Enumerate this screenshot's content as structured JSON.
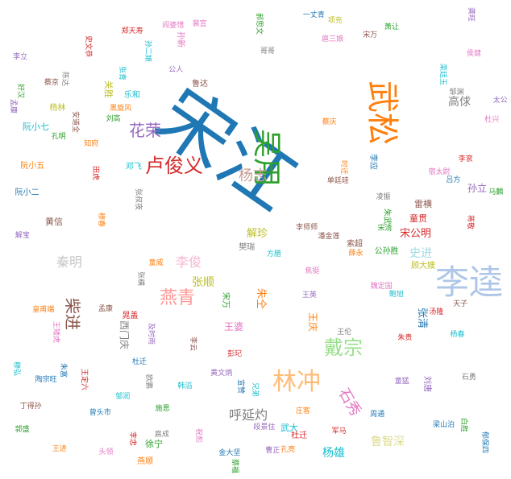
{
  "words": [
    {
      "text": "宋江",
      "color": "#1f77b4",
      "weight": 1.0
    },
    {
      "text": "李逵",
      "color": "#aec7e8",
      "weight": 0.5
    },
    {
      "text": "武松",
      "color": "#ff7f0e",
      "weight": 0.45
    },
    {
      "text": "吴用",
      "color": "#2ca02c",
      "weight": 0.42
    },
    {
      "text": "林冲",
      "color": "#ffbb78",
      "weight": 0.36
    },
    {
      "text": "卢俊义",
      "color": "#d62728",
      "weight": 0.3
    },
    {
      "text": "戴宗",
      "color": "#98df8a",
      "weight": 0.3
    },
    {
      "text": "燕青",
      "color": "#ff9896",
      "weight": 0.28
    },
    {
      "text": "花荣",
      "color": "#9467bd",
      "weight": 0.26
    },
    {
      "text": "柴进",
      "color": "#8c564b",
      "weight": 0.24
    },
    {
      "text": "杨志",
      "color": "#c49c94",
      "weight": 0.24
    },
    {
      "text": "石秀",
      "color": "#e377c2",
      "weight": 0.23
    },
    {
      "text": "高俅",
      "color": "#7f7f7f",
      "weight": 0.22
    },
    {
      "text": "秦明",
      "color": "#c7c7c7",
      "weight": 0.21
    },
    {
      "text": "李俊",
      "color": "#f7b6d2",
      "weight": 0.21
    },
    {
      "text": "张顺",
      "color": "#bcbd22",
      "weight": 0.2
    },
    {
      "text": "呼延灼",
      "color": "#7f7f7f",
      "weight": 0.2
    },
    {
      "text": "杨雄",
      "color": "#17becf",
      "weight": 0.19
    },
    {
      "text": "鲁智深",
      "color": "#dbdb8d",
      "weight": 0.19
    },
    {
      "text": "史进",
      "color": "#9edae5",
      "weight": 0.18
    },
    {
      "text": "宋公明",
      "color": "#d62728",
      "weight": 0.18
    },
    {
      "text": "解珍",
      "color": "#bcbd22",
      "weight": 0.17
    },
    {
      "text": "朱仝",
      "color": "#ff7f0e",
      "weight": 0.17
    },
    {
      "text": "孙立",
      "color": "#9467bd",
      "weight": 0.16
    },
    {
      "text": "王庆",
      "color": "#ff7f0e",
      "weight": 0.16
    },
    {
      "text": "王婆",
      "color": "#e377c2",
      "weight": 0.16
    },
    {
      "text": "张清",
      "color": "#1f77b4",
      "weight": 0.16
    },
    {
      "text": "西门庆",
      "color": "#7f7f7f",
      "weight": 0.15
    },
    {
      "text": "关胜",
      "color": "#bcbd22",
      "weight": 0.15
    },
    {
      "text": "阮小七",
      "color": "#17becf",
      "weight": 0.15
    },
    {
      "text": "雷横",
      "color": "#8c564b",
      "weight": 0.15
    },
    {
      "text": "童贯",
      "color": "#d62728",
      "weight": 0.14
    },
    {
      "text": "黄信",
      "color": "#8c564b",
      "weight": 0.14
    },
    {
      "text": "徐宁",
      "color": "#2ca02c",
      "weight": 0.14
    },
    {
      "text": "武大",
      "color": "#17becf",
      "weight": 0.14
    },
    {
      "text": "鲁达",
      "color": "#8c564b",
      "weight": 0.13
    },
    {
      "text": "顾大嫂",
      "color": "#bcbd22",
      "weight": 0.13
    },
    {
      "text": "朱武",
      "color": "#2ca02c",
      "weight": 0.13
    },
    {
      "text": "李应",
      "color": "#1f77b4",
      "weight": 0.13
    },
    {
      "text": "燕顺",
      "color": "#ff7f0e",
      "weight": 0.13
    },
    {
      "text": "刘唐",
      "color": "#9467bd",
      "weight": 0.13
    },
    {
      "text": "孙新",
      "color": "#e377c2",
      "weight": 0.13
    },
    {
      "text": "樊瑞",
      "color": "#7f7f7f",
      "weight": 0.13
    },
    {
      "text": "乐和",
      "color": "#17becf",
      "weight": 0.12
    },
    {
      "text": "杜迁",
      "color": "#d62728",
      "weight": 0.12
    },
    {
      "text": "宋万",
      "color": "#2ca02c",
      "weight": 0.12
    },
    {
      "text": "阮小二",
      "color": "#1f77b4",
      "weight": 0.12
    },
    {
      "text": "阮小五",
      "color": "#ff7f0e",
      "weight": 0.12
    },
    {
      "text": "晁盖",
      "color": "#d62728",
      "weight": 0.12
    },
    {
      "text": "公孙胜",
      "color": "#2ca02c",
      "weight": 0.12
    },
    {
      "text": "索超",
      "color": "#8c564b",
      "weight": 0.12
    },
    {
      "text": "杨林",
      "color": "#bcbd22",
      "weight": 0.12
    },
    {
      "text": "邓飞",
      "color": "#17becf",
      "weight": 0.12
    },
    {
      "text": "孟康",
      "color": "#9467bd",
      "weight": 0.11
    },
    {
      "text": "裴宣",
      "color": "#e377c2",
      "weight": 0.11
    },
    {
      "text": "欧鹏",
      "color": "#7f7f7f",
      "weight": 0.11
    },
    {
      "text": "蒋敬",
      "color": "#d62728",
      "weight": 0.11
    },
    {
      "text": "吕方",
      "color": "#1f77b4",
      "weight": 0.11
    },
    {
      "text": "郭盛",
      "color": "#2ca02c",
      "weight": 0.11
    },
    {
      "text": "安道全",
      "color": "#8c564b",
      "weight": 0.11
    },
    {
      "text": "皇甫端",
      "color": "#ff7f0e",
      "weight": 0.11
    },
    {
      "text": "王英",
      "color": "#9467bd",
      "weight": 0.11
    },
    {
      "text": "扈三娘",
      "color": "#e377c2",
      "weight": 0.11
    },
    {
      "text": "鲍旭",
      "color": "#17becf",
      "weight": 0.11
    },
    {
      "text": "项充",
      "color": "#bcbd22",
      "weight": 0.1
    },
    {
      "text": "李衮",
      "color": "#d62728",
      "weight": 0.1
    },
    {
      "text": "金大坚",
      "color": "#1f77b4",
      "weight": 0.1
    },
    {
      "text": "马麟",
      "color": "#2ca02c",
      "weight": 0.1
    },
    {
      "text": "童威",
      "color": "#ff7f0e",
      "weight": 0.1
    },
    {
      "text": "童猛",
      "color": "#9467bd",
      "weight": 0.1
    },
    {
      "text": "孟康",
      "color": "#8c564b",
      "weight": 0.1
    },
    {
      "text": "侯健",
      "color": "#e377c2",
      "weight": 0.1
    },
    {
      "text": "陈达",
      "color": "#7f7f7f",
      "weight": 0.1
    },
    {
      "text": "杨春",
      "color": "#17becf",
      "weight": 0.1
    },
    {
      "text": "郑天寿",
      "color": "#d62728",
      "weight": 0.1
    },
    {
      "text": "陶宗旺",
      "color": "#1f77b4",
      "weight": 0.1
    },
    {
      "text": "宋清",
      "color": "#2ca02c",
      "weight": 0.1
    },
    {
      "text": "穆春",
      "color": "#ff7f0e",
      "weight": 0.1
    },
    {
      "text": "曹正",
      "color": "#9467bd",
      "weight": 0.1
    },
    {
      "text": "宋万",
      "color": "#8c564b",
      "weight": 0.1
    },
    {
      "text": "杜兴",
      "color": "#e377c2",
      "weight": 0.1
    },
    {
      "text": "邹渊",
      "color": "#7f7f7f",
      "weight": 0.1
    },
    {
      "text": "邹润",
      "color": "#17becf",
      "weight": 0.1
    },
    {
      "text": "朱贵",
      "color": "#d62728",
      "weight": 0.1
    },
    {
      "text": "朱富",
      "color": "#1f77b4",
      "weight": 0.1
    },
    {
      "text": "蔡福",
      "color": "#2ca02c",
      "weight": 0.1
    },
    {
      "text": "蔡庆",
      "color": "#ff7f0e",
      "weight": 0.1
    },
    {
      "text": "李立",
      "color": "#9467bd",
      "weight": 0.1
    },
    {
      "text": "李云",
      "color": "#8c564b",
      "weight": 0.1
    },
    {
      "text": "焦挺",
      "color": "#e377c2",
      "weight": 0.1
    },
    {
      "text": "石勇",
      "color": "#7f7f7f",
      "weight": 0.1
    },
    {
      "text": "孙二娘",
      "color": "#17becf",
      "weight": 0.1
    },
    {
      "text": "王定六",
      "color": "#d62728",
      "weight": 0.1
    },
    {
      "text": "郁保四",
      "color": "#1f77b4",
      "weight": 0.1
    },
    {
      "text": "白胜",
      "color": "#2ca02c",
      "weight": 0.1
    },
    {
      "text": "时迁",
      "color": "#ff7f0e",
      "weight": 0.1
    },
    {
      "text": "段景住",
      "color": "#9467bd",
      "weight": 0.1
    },
    {
      "text": "潘金莲",
      "color": "#8c564b",
      "weight": 0.1
    },
    {
      "text": "阎婆惜",
      "color": "#e377c2",
      "weight": 0.1
    },
    {
      "text": "张横",
      "color": "#7f7f7f",
      "weight": 0.1
    },
    {
      "text": "穆弘",
      "color": "#17becf",
      "weight": 0.1
    },
    {
      "text": "李忠",
      "color": "#d62728",
      "weight": 0.1
    },
    {
      "text": "周通",
      "color": "#1f77b4",
      "weight": 0.1
    },
    {
      "text": "施恩",
      "color": "#2ca02c",
      "weight": 0.1
    },
    {
      "text": "薛永",
      "color": "#ff7f0e",
      "weight": 0.1
    },
    {
      "text": "黄文炳",
      "color": "#9467bd",
      "weight": 0.1
    },
    {
      "text": "蔡京",
      "color": "#8c564b",
      "weight": 0.1
    },
    {
      "text": "宿太尉",
      "color": "#e377c2",
      "weight": 0.1
    },
    {
      "text": "张叔夜",
      "color": "#7f7f7f",
      "weight": 0.1
    },
    {
      "text": "方腊",
      "color": "#17becf",
      "weight": 0.1
    },
    {
      "text": "田虎",
      "color": "#d62728",
      "weight": 0.1
    },
    {
      "text": "一丈青",
      "color": "#1f77b4",
      "weight": 0.1
    },
    {
      "text": "孔明",
      "color": "#2ca02c",
      "weight": 0.1
    },
    {
      "text": "孔亮",
      "color": "#ff7f0e",
      "weight": 0.1
    },
    {
      "text": "解宝",
      "color": "#9467bd",
      "weight": 0.1
    },
    {
      "text": "单廷珪",
      "color": "#8c564b",
      "weight": 0.1
    },
    {
      "text": "魏定国",
      "color": "#e377c2",
      "weight": 0.1
    },
    {
      "text": "凌振",
      "color": "#7f7f7f",
      "weight": 0.1
    },
    {
      "text": "韩滔",
      "color": "#17becf",
      "weight": 0.1
    },
    {
      "text": "彭玘",
      "color": "#d62728",
      "weight": 0.1
    },
    {
      "text": "宣赞",
      "color": "#1f77b4",
      "weight": 0.1
    },
    {
      "text": "郝思文",
      "color": "#2ca02c",
      "weight": 0.1
    },
    {
      "text": "黑旋风",
      "color": "#ff7f0e",
      "weight": 0.1
    },
    {
      "text": "及时雨",
      "color": "#9467bd",
      "weight": 0.1
    },
    {
      "text": "李师师",
      "color": "#8c564b",
      "weight": 0.1
    },
    {
      "text": "王矮虎",
      "color": "#e377c2",
      "weight": 0.1
    },
    {
      "text": "王伦",
      "color": "#7f7f7f",
      "weight": 0.1
    },
    {
      "text": "张青",
      "color": "#17becf",
      "weight": 0.1
    },
    {
      "text": "汤隆",
      "color": "#d62728",
      "weight": 0.1
    },
    {
      "text": "杜迁",
      "color": "#1f77b4",
      "weight": 0.1
    },
    {
      "text": "萧让",
      "color": "#2ca02c",
      "weight": 0.1
    },
    {
      "text": "王进",
      "color": "#ff7f0e",
      "weight": 0.1
    },
    {
      "text": "龚旺",
      "color": "#9467bd",
      "weight": 0.1
    },
    {
      "text": "丁得孙",
      "color": "#8c564b",
      "weight": 0.1
    },
    {
      "text": "祝彪",
      "color": "#e377c2",
      "weight": 0.1
    },
    {
      "text": "扈成",
      "color": "#7f7f7f",
      "weight": 0.1
    },
    {
      "text": "栾廷玉",
      "color": "#17becf",
      "weight": 0.1
    },
    {
      "text": "史文恭",
      "color": "#d62728",
      "weight": 0.1
    },
    {
      "text": "曾头市",
      "color": "#1f77b4",
      "weight": 0.1
    },
    {
      "text": "刘高",
      "color": "#2ca02c",
      "weight": 0.1
    },
    {
      "text": "知府",
      "color": "#ff7f0e",
      "weight": 0.1
    },
    {
      "text": "太公",
      "color": "#9467bd",
      "weight": 0.1
    },
    {
      "text": "天子",
      "color": "#8c564b",
      "weight": 0.1
    },
    {
      "text": "头领",
      "color": "#e377c2",
      "weight": 0.1
    },
    {
      "text": "哥哥",
      "color": "#7f7f7f",
      "weight": 0.1
    },
    {
      "text": "兄弟",
      "color": "#17becf",
      "weight": 0.1
    },
    {
      "text": "军马",
      "color": "#d62728",
      "weight": 0.1
    },
    {
      "text": "梁山泊",
      "color": "#1f77b4",
      "weight": 0.1
    },
    {
      "text": "好汉",
      "color": "#2ca02c",
      "weight": 0.1
    },
    {
      "text": "庄客",
      "color": "#ff7f0e",
      "weight": 0.1
    },
    {
      "text": "公人",
      "color": "#9467bd",
      "weight": 0.1
    }
  ]
}
